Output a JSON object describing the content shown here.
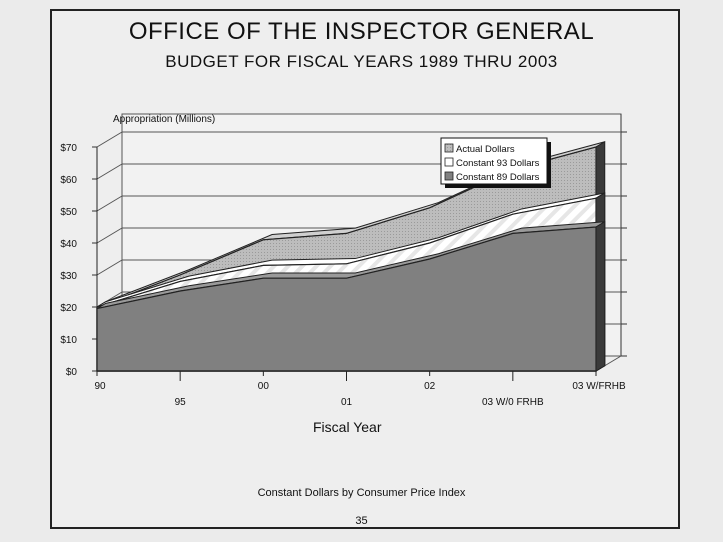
{
  "page": {
    "title": "OFFICE OF THE INSPECTOR GENERAL",
    "subtitle": "BUDGET FOR FISCAL YEARS 1989 THRU 2003",
    "footnote": "Constant Dollars by Consumer Price Index",
    "page_number": "35"
  },
  "colors": {
    "actual": "#bdbdbd",
    "constant93": "#ffffff",
    "constant89": "#808080",
    "background": "#ebebeb"
  },
  "chart_data": {
    "type": "area",
    "title": "",
    "ylabel": "Appropriation (Millions)",
    "xlabel": "Fiscal Year",
    "categories": [
      "90",
      "95",
      "00",
      "01",
      "02",
      "03 W/0 FRHB",
      "03 W/FRHB"
    ],
    "y_ticks": [
      "$0",
      "$10",
      "$20",
      "$30",
      "$40",
      "$50",
      "$60",
      "$70"
    ],
    "ylim": [
      0,
      70
    ],
    "grid": true,
    "legend_position": "top-right",
    "series": [
      {
        "name": "Actual Dollars",
        "values": [
          20,
          30,
          41,
          43,
          51,
          63,
          70
        ]
      },
      {
        "name": "Constant 93 Dollars",
        "values": [
          20,
          28,
          33,
          33.5,
          40,
          49,
          54
        ]
      },
      {
        "name": "Constant 89 Dollars",
        "values": [
          19.5,
          25,
          29,
          29,
          35,
          43,
          45
        ]
      }
    ]
  }
}
